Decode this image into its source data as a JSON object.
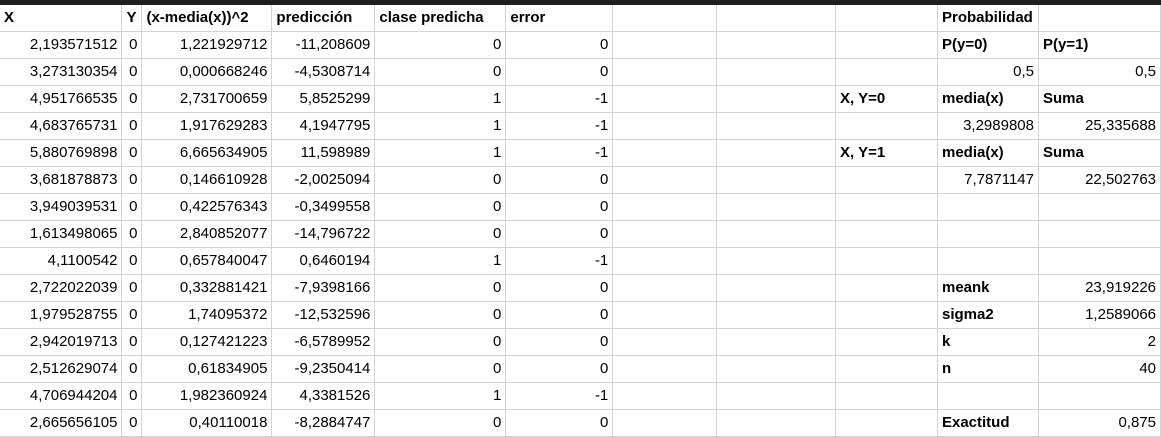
{
  "headers": {
    "x": "X",
    "y": "Y",
    "sq": "(x-media(x))^2",
    "pred": "predicción",
    "clase": "clase predicha",
    "error": "error",
    "prob": "Probabilidad"
  },
  "rows": [
    {
      "x": "2,193571512",
      "y": "0",
      "sq": "1,221929712",
      "pred": "-11,208609",
      "clase": "0",
      "error": "0"
    },
    {
      "x": "3,273130354",
      "y": "0",
      "sq": "0,000668246",
      "pred": "-4,5308714",
      "clase": "0",
      "error": "0"
    },
    {
      "x": "4,951766535",
      "y": "0",
      "sq": "2,731700659",
      "pred": "5,8525299",
      "clase": "1",
      "error": "-1"
    },
    {
      "x": "4,683765731",
      "y": "0",
      "sq": "1,917629283",
      "pred": "4,1947795",
      "clase": "1",
      "error": "-1"
    },
    {
      "x": "5,880769898",
      "y": "0",
      "sq": "6,665634905",
      "pred": "11,598989",
      "clase": "1",
      "error": "-1"
    },
    {
      "x": "3,681878873",
      "y": "0",
      "sq": "0,146610928",
      "pred": "-2,0025094",
      "clase": "0",
      "error": "0"
    },
    {
      "x": "3,949039531",
      "y": "0",
      "sq": "0,422576343",
      "pred": "-0,3499558",
      "clase": "0",
      "error": "0"
    },
    {
      "x": "1,613498065",
      "y": "0",
      "sq": "2,840852077",
      "pred": "-14,796722",
      "clase": "0",
      "error": "0"
    },
    {
      "x": "4,1100542",
      "y": "0",
      "sq": "0,657840047",
      "pred": "0,6460194",
      "clase": "1",
      "error": "-1"
    },
    {
      "x": "2,722022039",
      "y": "0",
      "sq": "0,332881421",
      "pred": "-7,9398166",
      "clase": "0",
      "error": "0"
    },
    {
      "x": "1,979528755",
      "y": "0",
      "sq": "1,74095372",
      "pred": "-12,532596",
      "clase": "0",
      "error": "0"
    },
    {
      "x": "2,942019713",
      "y": "0",
      "sq": "0,127421223",
      "pred": "-6,5789952",
      "clase": "0",
      "error": "0"
    },
    {
      "x": "2,512629074",
      "y": "0",
      "sq": "0,61834905",
      "pred": "-9,2350414",
      "clase": "0",
      "error": "0"
    },
    {
      "x": "4,706944204",
      "y": "0",
      "sq": "1,982360924",
      "pred": "4,3381526",
      "clase": "1",
      "error": "-1"
    },
    {
      "x": "2,665656105",
      "y": "0",
      "sq": "0,40110018",
      "pred": "-8,2884747",
      "clase": "0",
      "error": "0"
    }
  ],
  "side": {
    "p_y0_label": "P(y=0)",
    "p_y1_label": "P(y=1)",
    "p_y0": "0,5",
    "p_y1": "0,5",
    "xy0_label": "X, Y=0",
    "media_label_0": "media(x)",
    "suma_label_0": "Suma",
    "media_0": "3,2989808",
    "suma_0": "25,335688",
    "xy1_label": "X, Y=1",
    "media_label_1": "media(x)",
    "suma_label_1": "Suma",
    "media_1": "7,7871147",
    "suma_1": "22,502763",
    "meank_label": "meank",
    "meank": "23,919226",
    "sigma2_label": "sigma2",
    "sigma2": "1,2589066",
    "k_label": "k",
    "k": "2",
    "n_label": "n",
    "n": "40",
    "exact_label": "Exactitud",
    "exact": "0,875"
  }
}
